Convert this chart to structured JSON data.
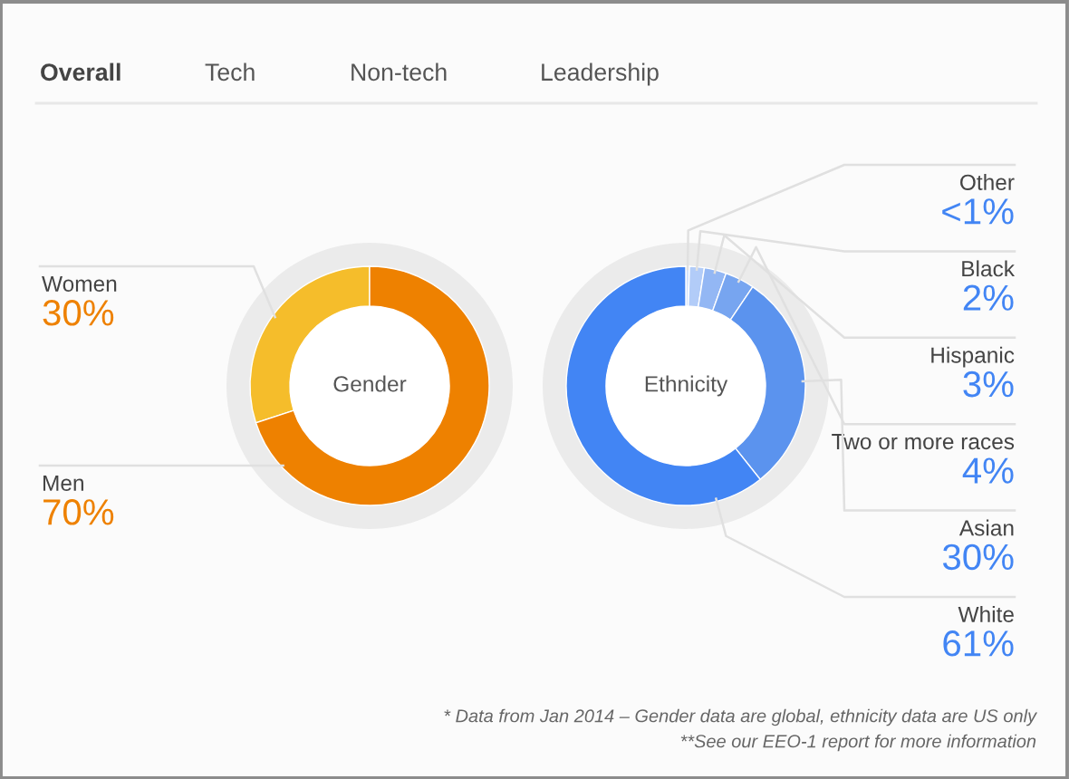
{
  "chart_data": [
    {
      "type": "donut",
      "title": "Gender",
      "categories": [
        "Women",
        "Men"
      ],
      "values": [
        30,
        70
      ],
      "colors": [
        "#f5bd2b",
        "#ee8100"
      ],
      "value_labels": [
        "30%",
        "70%"
      ],
      "annotations": [
        "Overall",
        "Tech",
        "Non-tech",
        "Leadership"
      ]
    },
    {
      "type": "donut",
      "title": "Ethnicity",
      "categories": [
        "Other",
        "Black",
        "Hispanic",
        "Two or more races",
        "Asian",
        "White"
      ],
      "values": [
        0.5,
        2,
        3,
        4,
        30,
        61
      ],
      "colors": [
        "#d3e2fb",
        "#b2ccf8",
        "#93b7f4",
        "#77a5f0",
        "#5b93ee",
        "#4285f4"
      ],
      "value_labels": [
        "<1%",
        "2%",
        "3%",
        "4%",
        "30%",
        "61%"
      ],
      "annotations": [
        "* Data from Jan 2014 – Gender data are global, ethnicity data are US only",
        "**See our EEO-1 report for more information"
      ]
    }
  ]
}
